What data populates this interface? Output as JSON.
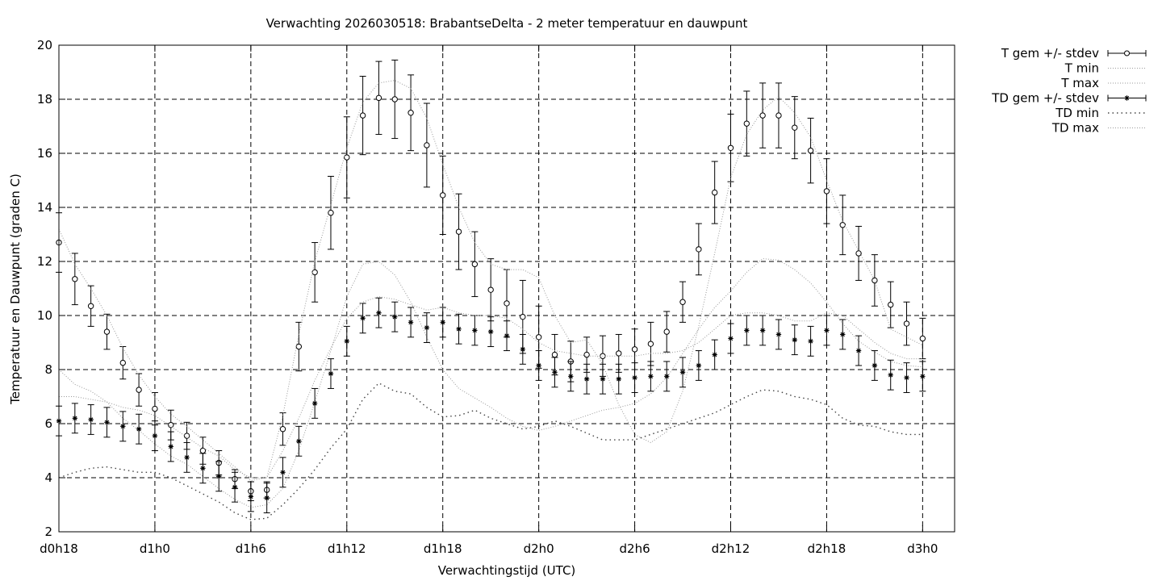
{
  "chart_data": {
    "type": "line",
    "title": "Verwachting 2026030518: BrabantseDelta - 2 meter temperatuur en dauwpunt",
    "xlabel": "Verwachtingstijd (UTC)",
    "ylabel": "Temperatuur en Dauwpunt (graden C)",
    "xlim": [
      18,
      74
    ],
    "ylim": [
      2,
      20
    ],
    "x_ticks": [
      {
        "x": 18,
        "label": "d0h18"
      },
      {
        "x": 24,
        "label": "d1h0"
      },
      {
        "x": 30,
        "label": "d1h6"
      },
      {
        "x": 36,
        "label": "d1h12"
      },
      {
        "x": 42,
        "label": "d1h18"
      },
      {
        "x": 48,
        "label": "d2h0"
      },
      {
        "x": 54,
        "label": "d2h6"
      },
      {
        "x": 60,
        "label": "d2h12"
      },
      {
        "x": 66,
        "label": "d2h18"
      },
      {
        "x": 72,
        "label": "d3h0"
      }
    ],
    "y_ticks": [
      2,
      4,
      6,
      8,
      10,
      12,
      14,
      16,
      18,
      20
    ],
    "grid": true,
    "legend_position": "outside-top-right",
    "x": [
      18,
      19,
      20,
      21,
      22,
      23,
      24,
      25,
      26,
      27,
      28,
      29,
      30,
      31,
      32,
      33,
      34,
      35,
      36,
      37,
      38,
      39,
      40,
      41,
      42,
      43,
      44,
      45,
      46,
      47,
      48,
      49,
      50,
      51,
      52,
      53,
      54,
      55,
      56,
      57,
      58,
      59,
      60,
      61,
      62,
      63,
      64,
      65,
      66,
      67,
      68,
      69,
      70,
      71,
      72
    ],
    "series": [
      {
        "name": "T gem +/- stdev",
        "kind": "errorbar",
        "marker": "open-circle",
        "values": [
          12.7,
          11.35,
          10.35,
          9.4,
          8.25,
          7.25,
          6.55,
          5.95,
          5.55,
          5.0,
          4.55,
          3.95,
          3.5,
          3.55,
          5.8,
          8.85,
          11.6,
          13.8,
          15.85,
          17.4,
          18.05,
          18.0,
          17.5,
          16.3,
          14.45,
          13.1,
          11.9,
          10.95,
          10.45,
          9.95,
          9.2,
          8.55,
          8.3,
          8.55,
          8.5,
          8.6,
          8.75,
          8.95,
          9.4,
          10.5,
          12.45,
          14.55,
          16.2,
          17.1,
          17.4,
          17.4,
          16.95,
          16.1,
          14.6,
          13.35,
          12.3,
          11.3,
          10.4,
          9.7,
          9.15
        ],
        "stdev": [
          1.1,
          0.95,
          0.75,
          0.65,
          0.6,
          0.6,
          0.6,
          0.55,
          0.5,
          0.5,
          0.45,
          0.35,
          0.35,
          0.3,
          0.6,
          0.9,
          1.1,
          1.35,
          1.5,
          1.45,
          1.35,
          1.45,
          1.4,
          1.55,
          1.45,
          1.4,
          1.2,
          1.15,
          1.25,
          1.35,
          1.15,
          0.75,
          0.75,
          0.65,
          0.75,
          0.7,
          0.75,
          0.8,
          0.75,
          0.75,
          0.95,
          1.15,
          1.25,
          1.2,
          1.2,
          1.2,
          1.15,
          1.2,
          1.2,
          1.1,
          1.0,
          0.95,
          0.85,
          0.8,
          0.75
        ]
      },
      {
        "name": "T min",
        "kind": "dotted",
        "values": [
          8.0,
          7.45,
          7.2,
          6.8,
          6.2,
          5.75,
          5.25,
          4.8,
          4.5,
          4.05,
          3.6,
          3.2,
          2.9,
          3.0,
          3.6,
          5.0,
          6.8,
          8.7,
          10.7,
          11.9,
          12.0,
          11.5,
          10.5,
          9.2,
          8.0,
          7.3,
          6.95,
          6.6,
          6.2,
          5.9,
          5.75,
          5.9,
          6.1,
          6.3,
          6.5,
          6.6,
          6.75,
          7.1,
          7.7,
          8.6,
          9.5,
          10.3,
          10.9,
          11.6,
          12.1,
          12.05,
          11.7,
          11.2,
          10.5,
          9.7,
          9.05,
          8.65,
          8.3,
          8.15,
          8.1
        ]
      },
      {
        "name": "T max",
        "kind": "dotted",
        "values": [
          13.2,
          11.9,
          11.0,
          10.0,
          8.8,
          7.8,
          7.0,
          6.35,
          5.9,
          5.4,
          4.9,
          4.4,
          3.9,
          4.0,
          6.3,
          9.3,
          12.0,
          14.1,
          16.2,
          17.9,
          18.6,
          18.7,
          18.4,
          17.3,
          15.6,
          14.0,
          12.7,
          11.9,
          11.7,
          11.7,
          11.4,
          10.0,
          9.0,
          9.1,
          8.2,
          6.7,
          5.6,
          5.3,
          5.7,
          7.2,
          9.6,
          12.3,
          15.1,
          16.7,
          17.6,
          18.1,
          17.5,
          16.6,
          15.0,
          13.5,
          12.4,
          11.3,
          9.5,
          9.2,
          8.9
        ]
      },
      {
        "name": "TD gem +/- stdev",
        "kind": "errorbar",
        "marker": "star",
        "values": [
          6.1,
          6.2,
          6.15,
          6.05,
          5.9,
          5.8,
          5.55,
          5.15,
          4.75,
          4.35,
          4.05,
          3.65,
          3.3,
          3.25,
          4.2,
          5.35,
          6.75,
          7.85,
          9.05,
          9.9,
          10.1,
          9.95,
          9.75,
          9.55,
          9.75,
          9.5,
          9.45,
          9.4,
          9.25,
          8.75,
          8.15,
          7.9,
          7.75,
          7.65,
          7.65,
          7.65,
          7.7,
          7.75,
          7.75,
          7.9,
          8.15,
          8.55,
          9.15,
          9.45,
          9.45,
          9.3,
          9.1,
          9.05,
          9.45,
          9.3,
          8.7,
          8.15,
          7.8,
          7.7,
          7.75
        ]
      },
      {
        "name": "TD min",
        "kind": "dotted",
        "values": [
          4.0,
          4.2,
          4.35,
          4.4,
          4.3,
          4.2,
          4.2,
          4.0,
          3.7,
          3.4,
          3.1,
          2.7,
          2.45,
          2.5,
          3.0,
          3.6,
          4.3,
          5.1,
          5.8,
          6.9,
          7.5,
          7.2,
          7.1,
          6.6,
          6.25,
          6.3,
          6.5,
          6.2,
          6.0,
          5.8,
          5.9,
          6.1,
          5.9,
          5.65,
          5.4,
          5.4,
          5.4,
          5.6,
          5.8,
          6.0,
          6.2,
          6.4,
          6.7,
          7.0,
          7.25,
          7.2,
          7.0,
          6.9,
          6.7,
          6.2,
          5.95,
          5.9,
          5.7,
          5.6,
          5.6
        ]
      },
      {
        "name": "TD max",
        "kind": "dotted",
        "values": [
          7.0,
          7.0,
          6.9,
          6.8,
          6.6,
          6.5,
          6.3,
          5.9,
          5.5,
          5.1,
          4.8,
          4.3,
          4.0,
          4.0,
          5.0,
          6.2,
          7.6,
          8.8,
          9.9,
          10.5,
          10.7,
          10.6,
          10.4,
          10.2,
          10.3,
          10.1,
          10.0,
          10.0,
          9.9,
          9.5,
          9.0,
          8.7,
          8.6,
          8.5,
          8.5,
          8.5,
          8.5,
          8.6,
          8.6,
          8.7,
          9.0,
          9.5,
          10.0,
          10.1,
          10.1,
          10.0,
          9.8,
          9.8,
          10.1,
          10.0,
          9.5,
          9.0,
          8.6,
          8.4,
          8.4
        ]
      }
    ]
  }
}
